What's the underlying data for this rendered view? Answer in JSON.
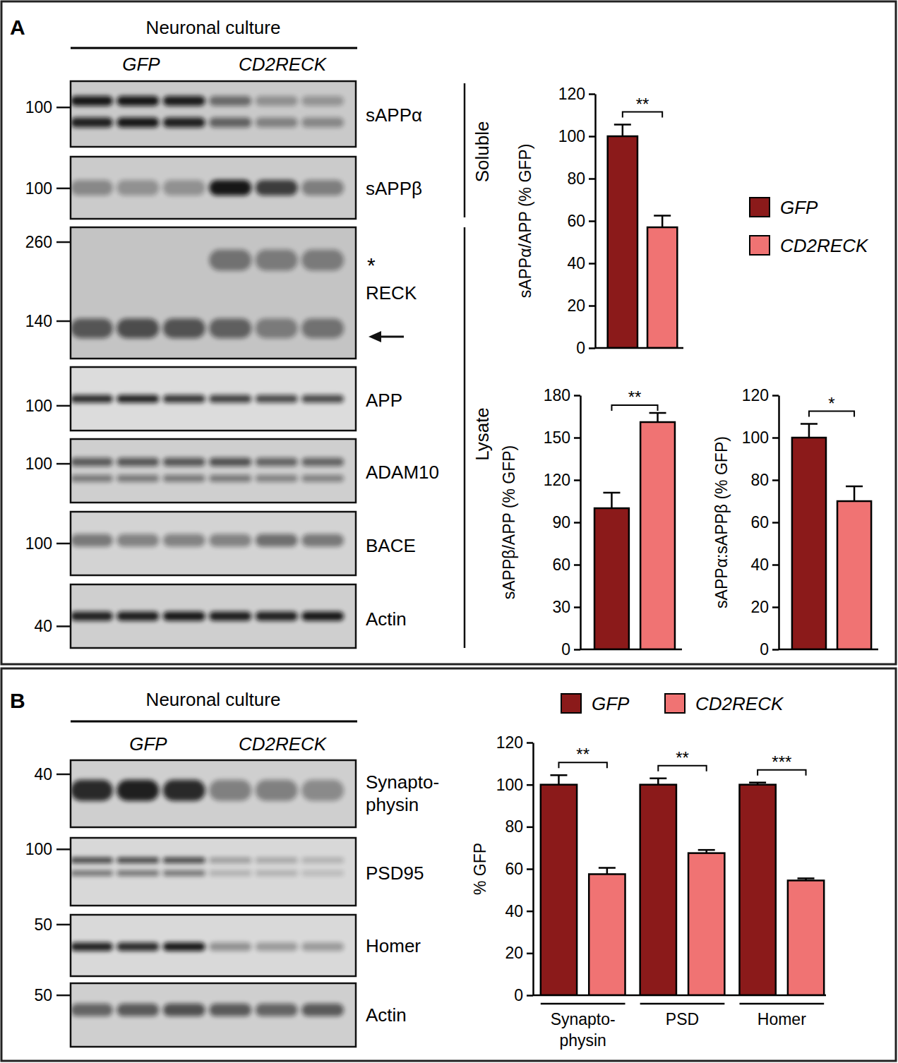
{
  "chart_data": [
    {
      "type": "bar",
      "categories": [
        null
      ],
      "ylabel": "sAPPα/APP (% GFP)",
      "ylim": [
        0,
        120
      ],
      "yticks": [
        0,
        20,
        40,
        60,
        80,
        100,
        120
      ],
      "legend": "right",
      "series": [
        {
          "name": "GFP",
          "color": "#8b1a1a",
          "values": [
            100
          ],
          "errors": [
            5.5
          ]
        },
        {
          "name": "CD2RECK",
          "color": "#f07373",
          "values": [
            57
          ],
          "errors": [
            5.5
          ]
        }
      ],
      "significance": [
        "**"
      ]
    },
    {
      "type": "bar",
      "categories": [
        null
      ],
      "ylabel": "sAPPβ/APP (% GFP)",
      "ylim": [
        0,
        180
      ],
      "yticks": [
        0,
        30,
        60,
        90,
        120,
        150,
        180
      ],
      "series": [
        {
          "name": "GFP",
          "color": "#8b1a1a",
          "values": [
            100
          ],
          "errors": [
            11
          ]
        },
        {
          "name": "CD2RECK",
          "color": "#f07373",
          "values": [
            161
          ],
          "errors": [
            6.5
          ]
        }
      ],
      "significance": [
        "**"
      ]
    },
    {
      "type": "bar",
      "categories": [
        null
      ],
      "ylabel": "sAPPα:sAPPβ (% GFP)",
      "ylim": [
        0,
        120
      ],
      "yticks": [
        0,
        20,
        40,
        60,
        80,
        100,
        120
      ],
      "series": [
        {
          "name": "GFP",
          "color": "#8b1a1a",
          "values": [
            100
          ],
          "errors": [
            6.5
          ]
        },
        {
          "name": "CD2RECK",
          "color": "#f07373",
          "values": [
            70
          ],
          "errors": [
            7
          ]
        }
      ],
      "significance": [
        "*"
      ]
    },
    {
      "type": "bar",
      "categories": [
        "Synapto-\nphysin",
        "PSD",
        "Homer"
      ],
      "ylabel": "% GFP",
      "ylim": [
        0,
        120
      ],
      "yticks": [
        0,
        20,
        40,
        60,
        80,
        100,
        120
      ],
      "legend": "top",
      "series": [
        {
          "name": "GFP",
          "color": "#8b1a1a",
          "values": [
            100,
            100,
            100
          ],
          "errors": [
            4.5,
            3,
            1
          ]
        },
        {
          "name": "CD2RECK",
          "color": "#f07373",
          "values": [
            57.5,
            67.5,
            54.5
          ],
          "errors": [
            3,
            1.5,
            1
          ]
        }
      ],
      "significance": [
        "**",
        "**",
        "***"
      ]
    }
  ],
  "blots": [
    {
      "panel": "A",
      "title": "Neuronal culture",
      "groups": [
        "GFP",
        "CD2RECK"
      ],
      "fractions": [
        "Soluble",
        "Lysate"
      ],
      "rows": [
        {
          "name": "sAPPα",
          "markers": [
            100
          ]
        },
        {
          "name": "sAPPβ",
          "markers": [
            100
          ]
        },
        {
          "name": "RECK",
          "markers": [
            260,
            140
          ],
          "annotation": "*"
        },
        {
          "name": "APP",
          "markers": [
            100
          ]
        },
        {
          "name": "ADAM10",
          "markers": [
            100
          ]
        },
        {
          "name": "BACE",
          "markers": [
            100
          ]
        },
        {
          "name": "Actin",
          "markers": [
            40
          ]
        }
      ]
    },
    {
      "panel": "B",
      "title": "Neuronal culture",
      "groups": [
        "GFP",
        "CD2RECK"
      ],
      "rows": [
        {
          "name": "Synapto-\nphysin",
          "markers": [
            40
          ]
        },
        {
          "name": "PSD95",
          "markers": [
            100
          ]
        },
        {
          "name": "Homer",
          "markers": [
            50
          ]
        },
        {
          "name": "Actin",
          "markers": [
            50
          ]
        }
      ]
    }
  ]
}
